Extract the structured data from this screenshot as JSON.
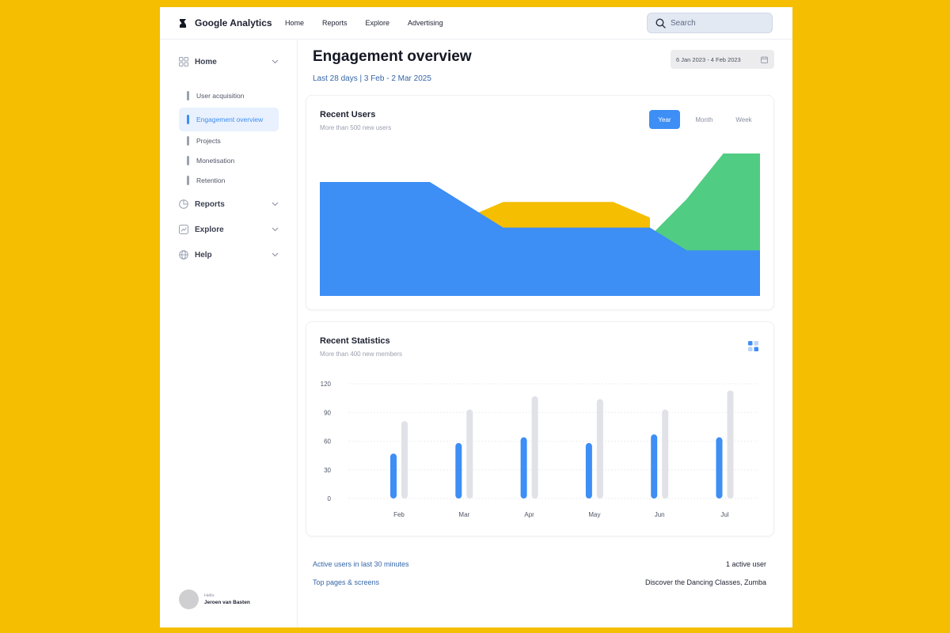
{
  "app": {
    "title": "Google Analytics"
  },
  "topnav": {
    "items": [
      "Home",
      "Reports",
      "Explore",
      "Advertising"
    ]
  },
  "search": {
    "placeholder": "Search"
  },
  "sidebar": {
    "home_label": "Home",
    "home_items": [
      {
        "label": "User acquisition",
        "active": false
      },
      {
        "label": "Engagement overview",
        "active": true
      },
      {
        "label": "Projects",
        "active": false
      },
      {
        "label": "Monetisation",
        "active": false
      },
      {
        "label": "Retention",
        "active": false
      }
    ],
    "reports_label": "Reports",
    "explore_label": "Explore",
    "help_label": "Help"
  },
  "user": {
    "greeting": "Hello",
    "name": "Jeroen van Basten"
  },
  "main": {
    "title": "Engagement overview",
    "subtitle": "Last 28 days | 3 Feb - 2 Mar 2025",
    "date_range": "6 Jan 2023 - 4 Feb 2023"
  },
  "recent_users": {
    "title": "Recent Users",
    "subtitle": "More than 500 new users",
    "toggles": [
      "Year",
      "Month",
      "Week"
    ],
    "active_toggle": "Year"
  },
  "recent_statistics": {
    "title": "Recent Statistics",
    "subtitle": "More than 400 new members"
  },
  "footer": {
    "rows": [
      {
        "label": "Active users in last 30 minutes",
        "value": "1 active user"
      },
      {
        "label": "Top pages & screens",
        "value": "Discover the Dancing Classes, Zumba"
      }
    ]
  },
  "colors": {
    "accent": "#3D8EF5",
    "yellow": "#F5BE00",
    "green": "#50CD83",
    "gray_bar": "#E1E2E8"
  },
  "chart_data": [
    {
      "type": "area",
      "title": "Recent Users",
      "x": [
        0,
        1,
        2,
        3,
        4,
        5,
        6,
        7,
        8,
        9,
        10,
        11,
        12
      ],
      "series": [
        {
          "color": "#3D8EF5",
          "values": [
            80,
            80,
            80,
            80,
            64,
            48,
            48,
            48,
            48,
            48,
            32,
            32,
            32
          ]
        },
        {
          "color": "#F5BE00",
          "values": [
            null,
            null,
            null,
            null,
            55,
            66,
            66,
            66,
            66,
            55,
            null,
            null,
            null
          ]
        },
        {
          "color": "#50CD83",
          "values": [
            null,
            null,
            null,
            null,
            null,
            null,
            null,
            null,
            null,
            42,
            68,
            100,
            100
          ]
        }
      ],
      "ylim": [
        0,
        100
      ],
      "grid": false,
      "legend": "none"
    },
    {
      "type": "bar",
      "title": "Recent Statistics",
      "categories": [
        "Feb",
        "Mar",
        "Apr",
        "May",
        "Jun",
        "Jul"
      ],
      "series": [
        {
          "color": "#3D8EF5",
          "values": [
            47,
            58,
            64,
            58,
            67,
            64
          ]
        },
        {
          "color": "#E1E2E8",
          "values": [
            81,
            93,
            107,
            104,
            93,
            113
          ]
        }
      ],
      "yticks": [
        0,
        30,
        60,
        90,
        120
      ],
      "ylim": [
        0,
        120
      ],
      "grid": true,
      "legend": "none"
    }
  ]
}
